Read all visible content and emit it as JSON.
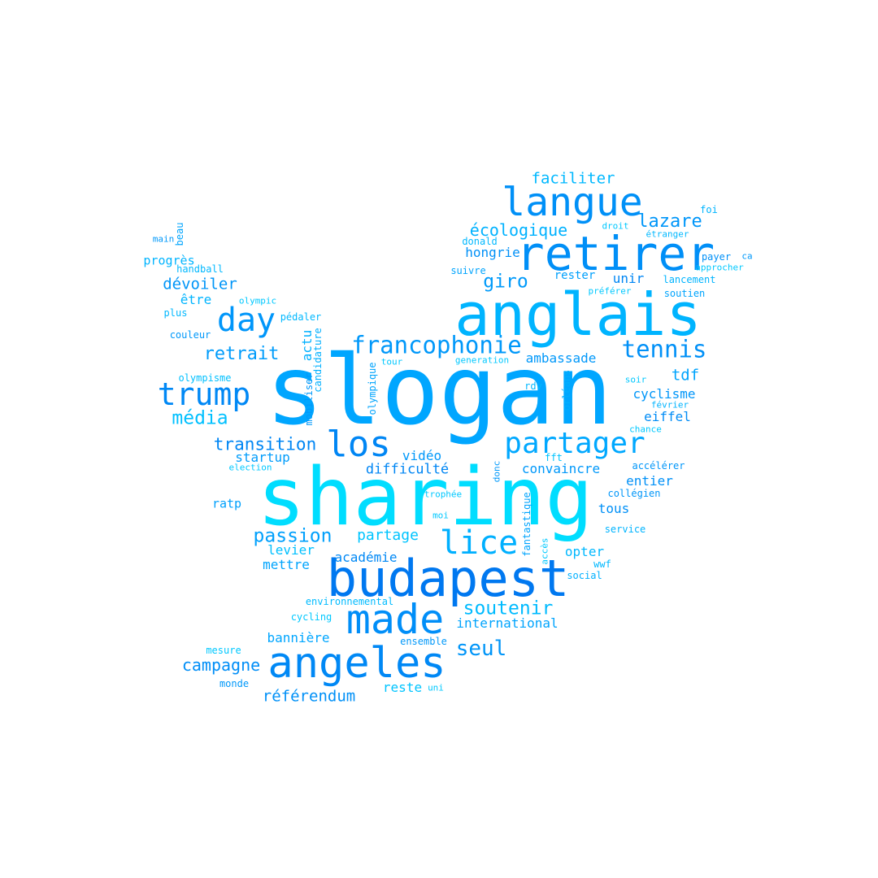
{
  "palette": [
    "#00a6ff",
    "#00ddff",
    "#0078f0",
    "#008ff7",
    "#00bbff",
    "#00c8ff"
  ],
  "words": [
    {
      "text": "slogan",
      "color": "#00a6ff"
    },
    {
      "text": "sharing",
      "color": "#00ddff"
    },
    {
      "text": "anglais",
      "color": "#00b4ff"
    },
    {
      "text": "budapest",
      "color": "#0078f0"
    },
    {
      "text": "retirer",
      "color": "#008ff7"
    },
    {
      "text": "langue",
      "color": "#0090f7"
    },
    {
      "text": "made",
      "color": "#008ef8"
    },
    {
      "text": "angeles",
      "color": "#0088f5"
    },
    {
      "text": "los",
      "color": "#0086f4"
    },
    {
      "text": "partager",
      "color": "#00a8ff"
    },
    {
      "text": "lice",
      "color": "#00b0ff"
    },
    {
      "text": "day",
      "color": "#0096fa"
    },
    {
      "text": "trump",
      "color": "#0088f5"
    },
    {
      "text": "francophonie",
      "color": "#0098fa"
    },
    {
      "text": "tennis",
      "color": "#0090f7"
    },
    {
      "text": "seul",
      "color": "#0095f8"
    },
    {
      "text": "soutenir",
      "color": "#00bbff"
    },
    {
      "text": "passion",
      "color": "#00a0fc"
    },
    {
      "text": "média",
      "color": "#00c0ff"
    },
    {
      "text": "retrait",
      "color": "#009cfb"
    },
    {
      "text": "lazare",
      "color": "#0096f9"
    },
    {
      "text": "giro",
      "color": "#009afa"
    },
    {
      "text": "écologique",
      "color": "#00b2ff"
    },
    {
      "text": "faciliter",
      "color": "#00b8ff"
    },
    {
      "text": "transition",
      "color": "#0086f4"
    },
    {
      "text": "campagne",
      "color": "#008ef7"
    },
    {
      "text": "référendum",
      "color": "#0090f7"
    },
    {
      "text": "dévoiler",
      "color": "#0095f8"
    },
    {
      "text": "tdf",
      "color": "#00a4fd"
    },
    {
      "text": "cyclisme",
      "color": "#0096f9"
    },
    {
      "text": "eiffel",
      "color": "#008cf6"
    },
    {
      "text": "partage",
      "color": "#00c4ff"
    },
    {
      "text": "difficulté",
      "color": "#0086f4"
    },
    {
      "text": "convaincre",
      "color": "#0098fa"
    },
    {
      "text": "vidéo",
      "color": "#0098fa"
    },
    {
      "text": "startup",
      "color": "#009cfb"
    },
    {
      "text": "ambassade",
      "color": "#0098fa"
    },
    {
      "text": "unir",
      "color": "#0086f4"
    },
    {
      "text": "rester",
      "color": "#00a0fc"
    },
    {
      "text": "hongrie",
      "color": "#0090f7"
    },
    {
      "text": "actu",
      "color": "#00b0ff"
    },
    {
      "text": "international",
      "color": "#00a4fd"
    },
    {
      "text": "bannière",
      "color": "#00a6ff"
    },
    {
      "text": "académie",
      "color": "#0088f5"
    },
    {
      "text": "levier",
      "color": "#00c0ff"
    },
    {
      "text": "mettre",
      "color": "#00a4fd"
    },
    {
      "text": "opter",
      "color": "#00b8ff"
    },
    {
      "text": "tous",
      "color": "#0090f7"
    },
    {
      "text": "entier",
      "color": "#0090f7"
    },
    {
      "text": "ratp",
      "color": "#00a0fc"
    },
    {
      "text": "progrès",
      "color": "#00b4ff"
    },
    {
      "text": "être",
      "color": "#00b4ff"
    },
    {
      "text": "reste",
      "color": "#00c4ff"
    },
    {
      "text": "accélérer",
      "color": "#0096f9"
    },
    {
      "text": "collégien",
      "color": "#0096f9"
    },
    {
      "text": "service",
      "color": "#00b4ff"
    },
    {
      "text": "wwf",
      "color": "#00b8ff"
    },
    {
      "text": "social",
      "color": "#00b0ff"
    },
    {
      "text": "environnemental",
      "color": "#00bbff"
    },
    {
      "text": "cycling",
      "color": "#00c8ff"
    },
    {
      "text": "ensemble",
      "color": "#0098fa"
    },
    {
      "text": "uni",
      "color": "#00c8ff"
    },
    {
      "text": "mesure",
      "color": "#00c8ff"
    },
    {
      "text": "monde",
      "color": "#0098fa"
    },
    {
      "text": "olympisme",
      "color": "#00c0ff"
    },
    {
      "text": "election",
      "color": "#00c8ff"
    },
    {
      "text": "couleur",
      "color": "#0098fa"
    },
    {
      "text": "plus",
      "color": "#00b8ff"
    },
    {
      "text": "olympic",
      "color": "#00c8ff"
    },
    {
      "text": "handball",
      "color": "#00b8ff"
    },
    {
      "text": "main",
      "color": "#0098fa"
    },
    {
      "text": "beau",
      "color": "#00a4fd"
    },
    {
      "text": "pédaler",
      "color": "#00b8ff"
    },
    {
      "text": "candidature",
      "color": "#00b0ff"
    },
    {
      "text": "mobiliser",
      "color": "#0098fa"
    },
    {
      "text": "olympique",
      "color": "#00a4fd"
    },
    {
      "text": "tour",
      "color": "#00c8ff"
    },
    {
      "text": "generation",
      "color": "#00c8ff"
    },
    {
      "text": "rdv",
      "color": "#00b8ff"
    },
    {
      "text": "orléans",
      "color": "#00b0ff"
    },
    {
      "text": "fft",
      "color": "#00c4ff"
    },
    {
      "text": "donc",
      "color": "#0098fa"
    },
    {
      "text": "trophée",
      "color": "#00c8ff"
    },
    {
      "text": "moi",
      "color": "#00c8ff"
    },
    {
      "text": "fantastique",
      "color": "#00a4fd"
    },
    {
      "text": "accès",
      "color": "#00c8ff"
    },
    {
      "text": "soir",
      "color": "#00c8ff"
    },
    {
      "text": "février",
      "color": "#00b4ff"
    },
    {
      "text": "chance",
      "color": "#00c8ff"
    },
    {
      "text": "foi",
      "color": "#00b4ff"
    },
    {
      "text": "droit",
      "color": "#00c8ff"
    },
    {
      "text": "étranger",
      "color": "#00b8ff"
    },
    {
      "text": "donald",
      "color": "#00b8ff"
    },
    {
      "text": "payer",
      "color": "#0090f7"
    },
    {
      "text": "ca",
      "color": "#0098fa"
    },
    {
      "text": "approcher",
      "color": "#00c8ff"
    },
    {
      "text": "suivre",
      "color": "#00a4fd"
    },
    {
      "text": "lancement",
      "color": "#00b4ff"
    },
    {
      "text": "préférer",
      "color": "#00c8ff"
    },
    {
      "text": "soutien",
      "color": "#00a4fd"
    }
  ]
}
